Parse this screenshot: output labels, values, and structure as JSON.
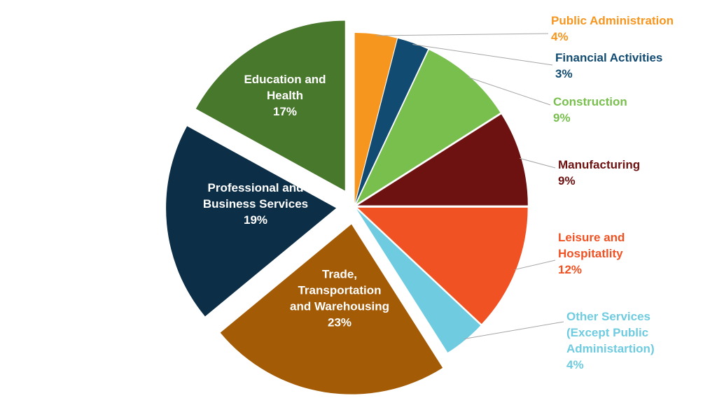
{
  "chart_data": {
    "type": "pie",
    "slices": [
      {
        "name": "Public Administration",
        "value_label": "4%",
        "value": 4,
        "color": "#F7961F",
        "label_color": "#F7961F",
        "label_lines": [
          "Public Administration",
          "4%"
        ],
        "inside": false
      },
      {
        "name": "Financial Activities",
        "value_label": "3%",
        "value": 3,
        "color": "#114B72",
        "label_color": "#114B72",
        "label_lines": [
          "Financial Activities",
          "3%"
        ],
        "inside": false
      },
      {
        "name": "Construction",
        "value_label": "9%",
        "value": 9,
        "color": "#78BF4E",
        "label_color": "#78BF4E",
        "label_lines": [
          "Construction",
          "9%"
        ],
        "inside": false
      },
      {
        "name": "Manufacturing",
        "value_label": "9%",
        "value": 9,
        "color": "#6E1111",
        "label_color": "#6E1111",
        "label_lines": [
          "Manufacturing",
          "9%"
        ],
        "inside": false
      },
      {
        "name": "Leisure and Hospitatlity",
        "value_label": "12%",
        "value": 12,
        "color": "#F05223",
        "label_color": "#F05223",
        "label_lines": [
          "Leisure and",
          "Hospitatlity",
          "12%"
        ],
        "inside": false
      },
      {
        "name": "Other Services (Except Public Administartion)",
        "value_label": "4%",
        "value": 4,
        "color": "#6FCCE0",
        "label_color": "#6FCCE0",
        "label_lines": [
          "Other Services",
          "(Except Public",
          "Administartion)",
          "4%"
        ],
        "inside": false
      },
      {
        "name": "Trade, Transportation and Warehousing",
        "value_label": "23%",
        "value": 23,
        "color": "#A45B06",
        "label_color": "#FFFFFF",
        "label_lines": [
          "Trade,",
          "Transportation",
          "and Warehousing",
          "23%"
        ],
        "inside": true
      },
      {
        "name": "Professional and Business Services",
        "value_label": "19%",
        "value": 19,
        "color": "#0C2E47",
        "label_color": "#FFFFFF",
        "label_lines": [
          "Professional and",
          "Business Services",
          "19%"
        ],
        "inside": true
      },
      {
        "name": "Education and Health",
        "value_label": "17%",
        "value": 17,
        "color": "#48782B",
        "label_color": "#FFFFFF",
        "label_lines": [
          "Education and",
          "Health",
          "17%"
        ],
        "inside": true
      }
    ]
  }
}
